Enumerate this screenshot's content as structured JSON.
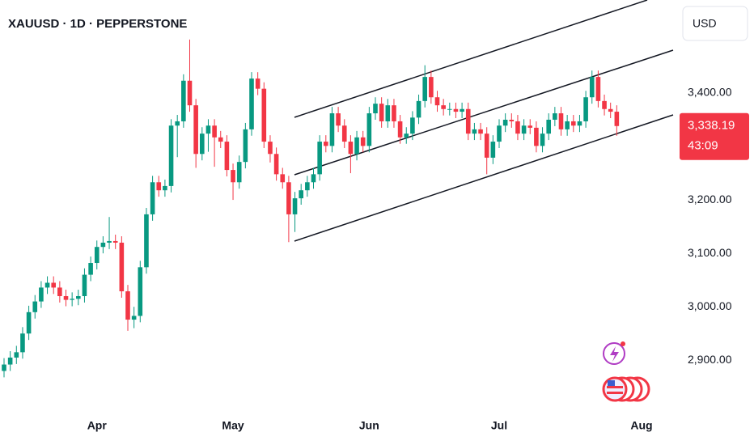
{
  "chart_data": {
    "type": "candlestick",
    "title": "XAUUSD · 1D · PEPPERSTONE",
    "currency": "USD",
    "up_color": "#089981",
    "down_color": "#f23645",
    "grid": false,
    "ylim": [
      2802,
      3574
    ],
    "yticks": [
      {
        "value": 3400,
        "label": "3,400.00"
      },
      {
        "value": 3200,
        "label": "3,200.00"
      },
      {
        "value": 3100,
        "label": "3,100.00"
      },
      {
        "value": 3000,
        "label": "3,000.00"
      },
      {
        "value": 2900,
        "label": "2,900.00"
      }
    ],
    "last_price": {
      "value": 3338.19,
      "label": "3,338.19"
    },
    "countdown": "43:09",
    "categories": [
      null,
      null,
      null,
      null,
      null,
      null,
      null,
      null,
      null,
      null,
      null,
      null,
      null,
      null,
      null,
      "Apr",
      null,
      null,
      null,
      null,
      null,
      null,
      null,
      null,
      null,
      null,
      null,
      null,
      null,
      null,
      null,
      null,
      null,
      null,
      null,
      null,
      null,
      "May",
      null,
      null,
      null,
      null,
      null,
      null,
      null,
      null,
      null,
      null,
      null,
      null,
      null,
      null,
      null,
      null,
      null,
      null,
      null,
      null,
      null,
      "Jun",
      null,
      null,
      null,
      null,
      null,
      null,
      null,
      null,
      null,
      null,
      null,
      null,
      null,
      null,
      null,
      null,
      null,
      null,
      null,
      null,
      "Jul",
      null,
      null,
      null,
      null,
      null,
      null,
      null,
      null,
      null,
      null,
      null,
      null,
      null,
      null,
      null,
      null,
      null,
      null,
      null,
      null,
      null,
      null,
      "Aug"
    ],
    "open": [
      2880,
      2892,
      2905,
      2915,
      2950,
      2990,
      3010,
      3036,
      3045,
      3036,
      3020,
      3013,
      3015,
      3020,
      3060,
      3082,
      3112,
      3120,
      3123,
      3120,
      3029,
      2976,
      2983,
      3074,
      3173,
      3233,
      3218,
      3226,
      3339,
      3347,
      3423,
      3377,
      3286,
      3324,
      3339,
      3317,
      3309,
      3256,
      3233,
      3271,
      3332,
      3427,
      3408,
      3309,
      3286,
      3248,
      3233,
      3173,
      3203,
      3218,
      3233,
      3248,
      3309,
      3301,
      3362,
      3339,
      3309,
      3286,
      3317,
      3301,
      3362,
      3380,
      3347,
      3377,
      3347,
      3317,
      3324,
      3354,
      3385,
      3430,
      3392,
      3377,
      3370,
      3370,
      3365,
      3370,
      3324,
      3332,
      3324,
      3279,
      3309,
      3339,
      3350,
      3347,
      3324,
      3339,
      3335,
      3301,
      3324,
      3350,
      3362,
      3332,
      3347,
      3339,
      3347,
      3392,
      3430,
      3385,
      3370,
      3365,
      null,
      null,
      null,
      null
    ],
    "high": [
      2904,
      2917,
      2927,
      2962,
      3002,
      3022,
      3048,
      3057,
      3057,
      3048,
      3032,
      3027,
      3032,
      3072,
      3094,
      3124,
      3132,
      3168,
      3135,
      3132,
      3041,
      3000,
      3086,
      3185,
      3245,
      3245,
      3238,
      3351,
      3359,
      3435,
      3500,
      3389,
      3336,
      3351,
      3351,
      3329,
      3321,
      3268,
      3283,
      3344,
      3439,
      3439,
      3420,
      3321,
      3298,
      3260,
      3245,
      3215,
      3230,
      3245,
      3260,
      3321,
      3321,
      3374,
      3374,
      3351,
      3321,
      3329,
      3329,
      3374,
      3392,
      3392,
      3389,
      3389,
      3359,
      3336,
      3366,
      3397,
      3452,
      3442,
      3404,
      3389,
      3382,
      3382,
      3382,
      3382,
      3344,
      3344,
      3336,
      3321,
      3351,
      3362,
      3362,
      3359,
      3351,
      3351,
      3347,
      3336,
      3362,
      3374,
      3374,
      3359,
      3359,
      3359,
      3404,
      3442,
      3442,
      3397,
      3382,
      3377,
      null,
      null,
      null,
      null
    ],
    "low": [
      2868,
      2880,
      2893,
      2903,
      2938,
      2978,
      2998,
      3024,
      3024,
      3008,
      3001,
      3001,
      3003,
      3008,
      3048,
      3070,
      3100,
      3108,
      3108,
      3017,
      2955,
      2960,
      2971,
      3062,
      3161,
      3206,
      3206,
      3214,
      3280,
      3335,
      3365,
      3260,
      3274,
      3290,
      3262,
      3297,
      3244,
      3200,
      3221,
      3259,
      3320,
      3396,
      3297,
      3270,
      3236,
      3221,
      3121,
      3140,
      3191,
      3206,
      3221,
      3236,
      3289,
      3289,
      3327,
      3297,
      3250,
      3274,
      3289,
      3289,
      3350,
      3335,
      3335,
      3335,
      3305,
      3305,
      3312,
      3342,
      3373,
      3380,
      3365,
      3358,
      3358,
      3353,
      3353,
      3312,
      3312,
      3312,
      3248,
      3267,
      3297,
      3327,
      3335,
      3312,
      3312,
      3323,
      3289,
      3289,
      3312,
      3338,
      3320,
      3320,
      3327,
      3327,
      3335,
      3380,
      3373,
      3358,
      3353,
      3320,
      null,
      null,
      null,
      null
    ],
    "close": [
      2892,
      2905,
      2915,
      2950,
      2990,
      3010,
      3036,
      3045,
      3036,
      3020,
      3013,
      3015,
      3020,
      3060,
      3082,
      3112,
      3120,
      3123,
      3120,
      3029,
      2976,
      2983,
      3074,
      3173,
      3233,
      3218,
      3226,
      3339,
      3347,
      3423,
      3377,
      3286,
      3324,
      3339,
      3317,
      3309,
      3256,
      3233,
      3271,
      3332,
      3427,
      3408,
      3309,
      3286,
      3248,
      3233,
      3173,
      3203,
      3218,
      3233,
      3248,
      3309,
      3301,
      3362,
      3339,
      3309,
      3286,
      3317,
      3301,
      3362,
      3380,
      3347,
      3377,
      3347,
      3317,
      3324,
      3354,
      3385,
      3430,
      3392,
      3377,
      3370,
      3370,
      3365,
      3370,
      3324,
      3332,
      3324,
      3279,
      3309,
      3339,
      3350,
      3347,
      3324,
      3339,
      3335,
      3301,
      3324,
      3350,
      3362,
      3332,
      3347,
      3339,
      3347,
      3392,
      3430,
      3385,
      3370,
      3365,
      3338.19,
      null,
      null,
      null,
      null
    ]
  }
}
